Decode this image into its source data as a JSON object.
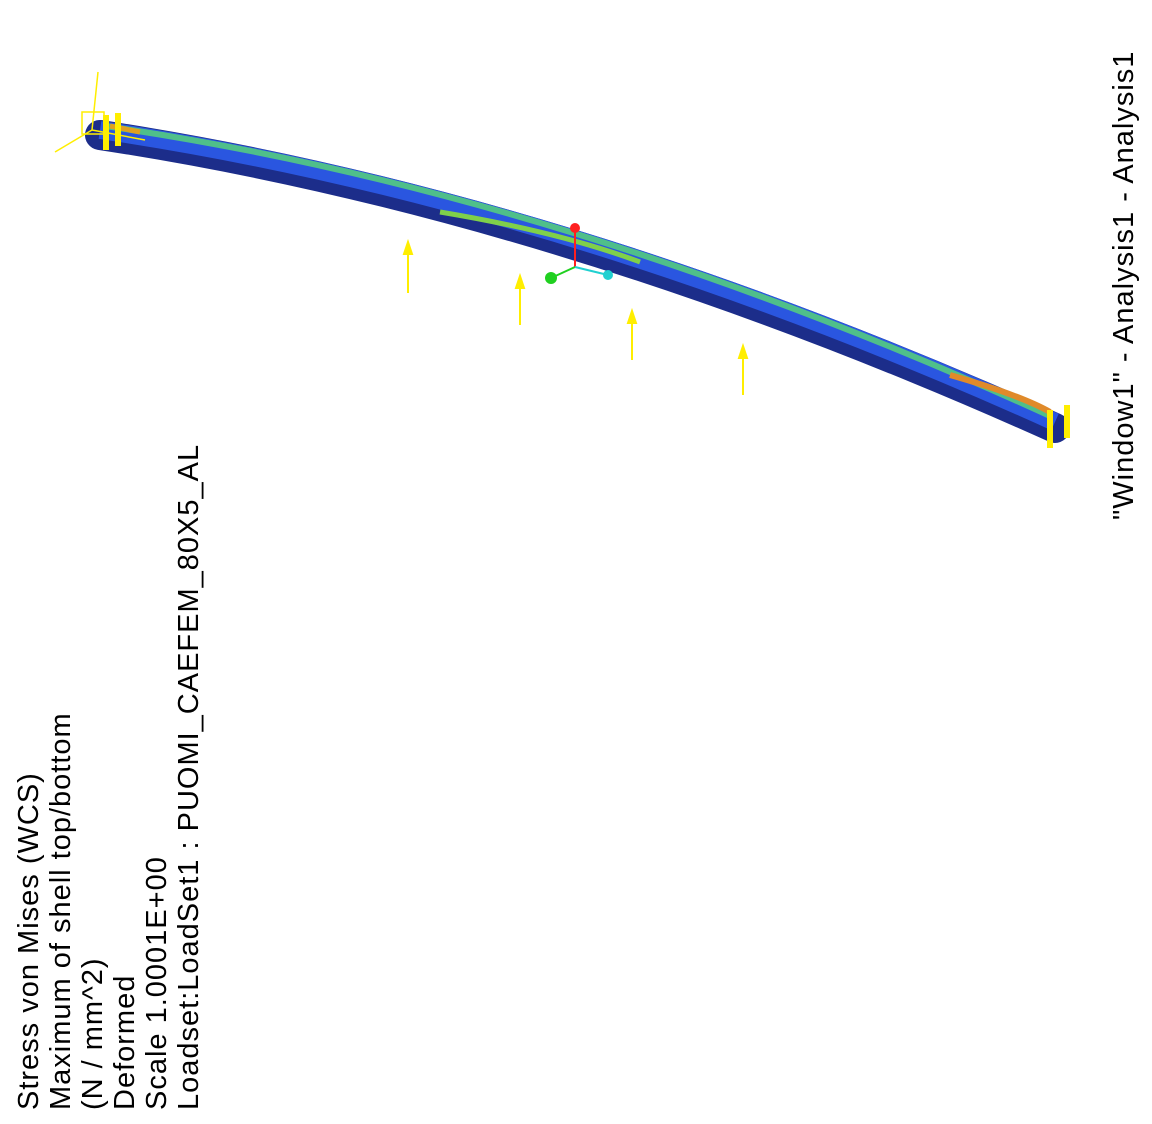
{
  "legend": {
    "lines": [
      "Stress von Mises (WCS)",
      "Maximum of shell top/bottom",
      "(N / mm^2)",
      "Deformed",
      "Scale 1.0001E+00",
      "Loadset:LoadSet1 : PUOMI_CAEFEM_80X5_AL"
    ]
  },
  "window": {
    "title": "\"Window1\" - Analysis1 - Analysis1"
  }
}
